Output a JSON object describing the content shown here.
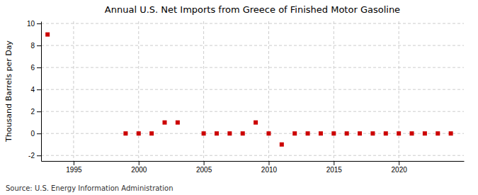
{
  "chart_data": {
    "type": "scatter",
    "title": "Annual U.S. Net Imports from Greece of Finished Motor Gasoline",
    "ylabel": "Thousand Barrels per Day",
    "annotations": [
      "Source: U.S. Energy Information Administration"
    ],
    "x": [
      1993,
      1999,
      2000,
      2001,
      2002,
      2003,
      2005,
      2006,
      2007,
      2008,
      2009,
      2010,
      2011,
      2012,
      2013,
      2014,
      2015,
      2016,
      2017,
      2018,
      2019,
      2020,
      2021,
      2022,
      2023,
      2024
    ],
    "values": [
      9,
      0,
      0,
      0,
      1,
      1,
      0,
      0,
      0,
      0,
      1,
      0,
      -1,
      0,
      0,
      0,
      0,
      0,
      0,
      0,
      0,
      0,
      0,
      0,
      0,
      0
    ],
    "color": "#cc0000",
    "marker": "square",
    "xlim": [
      1992.5,
      2025
    ],
    "ylim": [
      -2.5,
      10.2
    ],
    "xticks": [
      1995,
      2000,
      2005,
      2010,
      2015,
      2020
    ],
    "yticks": [
      -2,
      0,
      2,
      4,
      6,
      8,
      10
    ],
    "grid": true
  }
}
